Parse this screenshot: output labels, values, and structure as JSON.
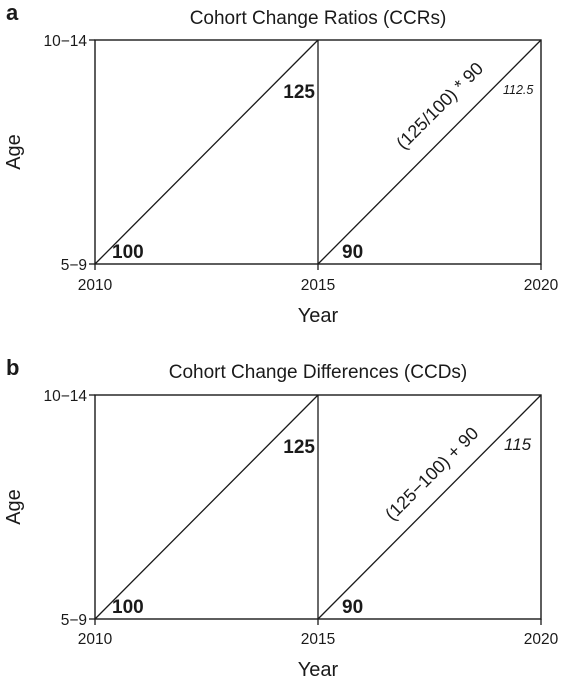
{
  "panels": [
    {
      "letter": "a",
      "title": "Cohort Change Ratios (CCRs)",
      "ylabel": "Age",
      "xlabel": "Year",
      "y_ticks": [
        "10−14",
        "5−9"
      ],
      "x_ticks": [
        "2010",
        "2015",
        "2020"
      ],
      "start_value": "100",
      "end_value": "125",
      "base_value": "90",
      "formula": "(125/100) * 90",
      "result": "112.5"
    },
    {
      "letter": "b",
      "title": "Cohort Change Differences (CCDs)",
      "ylabel": "Age",
      "xlabel": "Year",
      "y_ticks": [
        "10−14",
        "5−9"
      ],
      "x_ticks": [
        "2010",
        "2015",
        "2020"
      ],
      "start_value": "100",
      "end_value": "125",
      "base_value": "90",
      "formula": "(125−100) + 90",
      "result": "115"
    }
  ]
}
